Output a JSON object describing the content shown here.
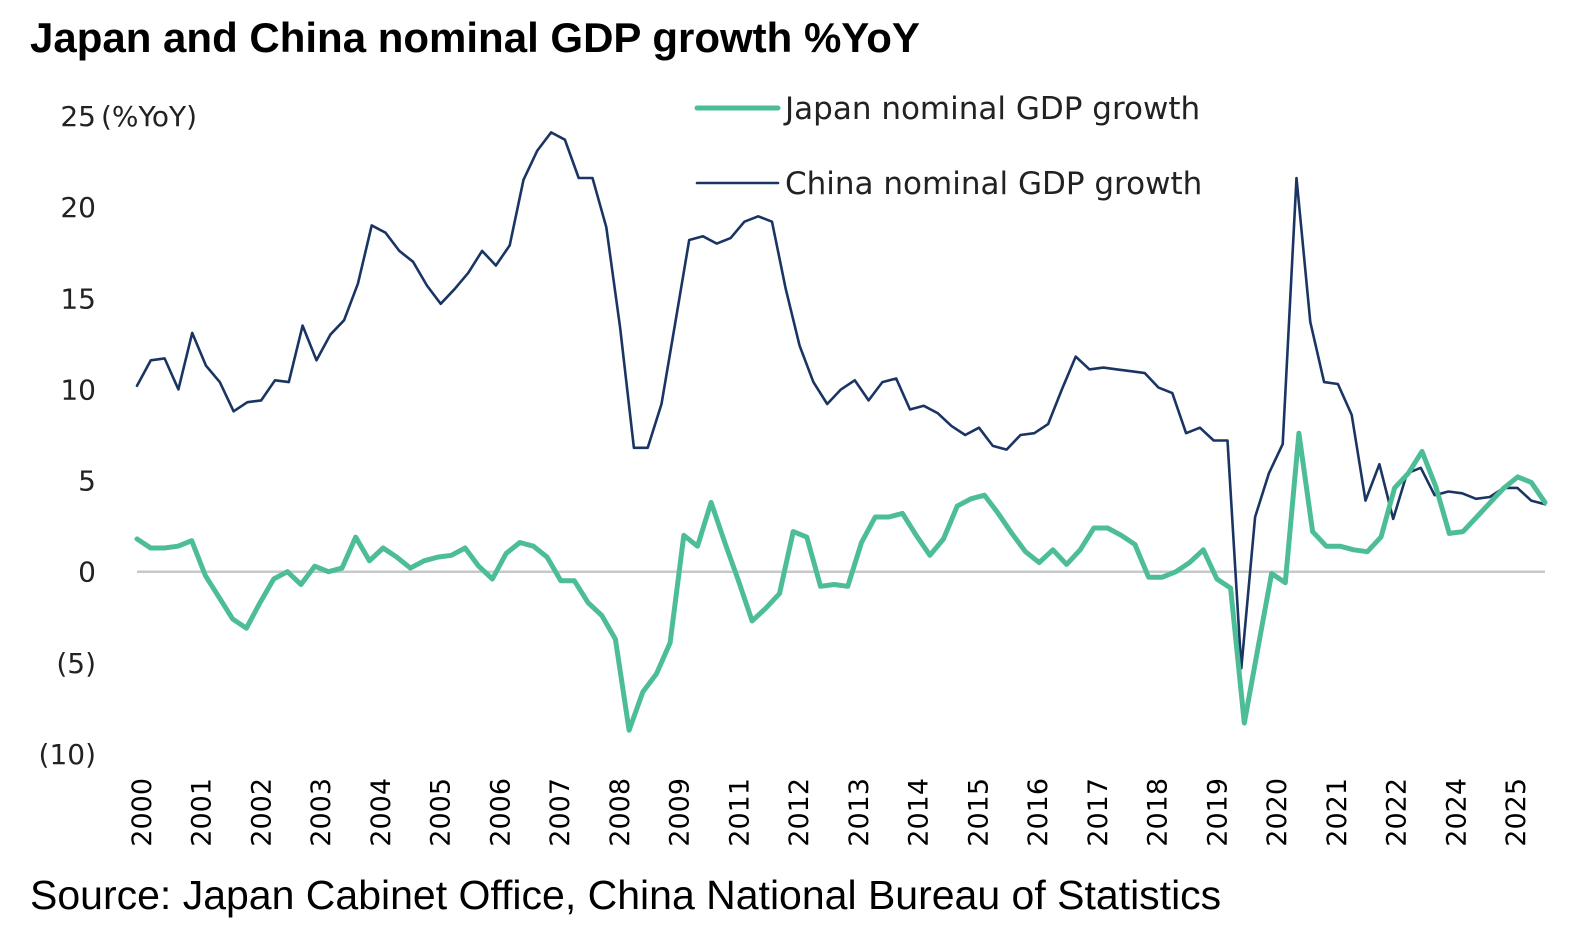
{
  "title": "Japan and China nominal GDP growth %YoY",
  "source": "Source: Japan Cabinet Office, China National Bureau of Statistics",
  "colors": {
    "japan": "#4dbd98",
    "china": "#1a3563",
    "zero_line": "#c8c8c8"
  },
  "chart_data": {
    "type": "line",
    "ylabel": "(%YoY)",
    "ylim": [
      -10,
      25
    ],
    "yticks": [
      {
        "value": 25,
        "label": "25"
      },
      {
        "value": 20,
        "label": "20"
      },
      {
        "value": 15,
        "label": "15"
      },
      {
        "value": 10,
        "label": "10"
      },
      {
        "value": 5,
        "label": "5"
      },
      {
        "value": 0,
        "label": "0"
      },
      {
        "value": -5,
        "label": "(5)"
      },
      {
        "value": -10,
        "label": "(10)"
      }
    ],
    "xtick_labels": [
      "2000",
      "2001",
      "2002",
      "2003",
      "2004",
      "2005",
      "2006",
      "2007",
      "2008",
      "2009",
      "2011",
      "2012",
      "2013",
      "2014",
      "2015",
      "2016",
      "2017",
      "2018",
      "2019",
      "2020",
      "2021",
      "2022",
      "2024",
      "2025"
    ],
    "legend_position": "top-right",
    "grid": false,
    "series": [
      {
        "name": "Japan nominal GDP growth",
        "key": "japan",
        "values": [
          1.8,
          1.3,
          1.3,
          1.4,
          1.7,
          -0.2,
          -1.4,
          -2.6,
          -3.1,
          -1.7,
          -0.4,
          0.0,
          -0.7,
          0.3,
          0.0,
          0.2,
          1.9,
          0.6,
          1.3,
          0.8,
          0.2,
          0.6,
          0.8,
          0.9,
          1.3,
          0.3,
          -0.4,
          1.0,
          1.6,
          1.4,
          0.8,
          -0.5,
          -0.5,
          -1.7,
          -2.4,
          -3.7,
          -8.7,
          -6.6,
          -5.6,
          -3.9,
          2.0,
          1.4,
          3.8,
          1.6,
          -0.5,
          -2.7,
          -2.0,
          -1.2,
          2.2,
          1.9,
          -0.8,
          -0.7,
          -0.8,
          1.6,
          3.0,
          3.0,
          3.2,
          2.0,
          0.9,
          1.8,
          3.6,
          4.0,
          4.2,
          3.2,
          2.1,
          1.1,
          0.5,
          1.2,
          0.4,
          1.2,
          2.4,
          2.4,
          2.0,
          1.5,
          -0.3,
          -0.3,
          0.0,
          0.5,
          1.2,
          -0.4,
          -0.9,
          -8.3,
          -4.2,
          -0.1,
          -0.6,
          7.6,
          2.2,
          1.4,
          1.4,
          1.2,
          1.1,
          1.9,
          4.6,
          5.4,
          6.6,
          4.7,
          2.1,
          2.2,
          3.0,
          3.8,
          4.6,
          5.2,
          4.9,
          3.8
        ]
      },
      {
        "name": "China nominal GDP growth",
        "key": "china",
        "values": [
          10.2,
          11.6,
          11.7,
          10.0,
          13.1,
          11.3,
          10.4,
          8.8,
          9.3,
          9.4,
          10.5,
          10.4,
          13.5,
          11.6,
          13.0,
          13.8,
          15.8,
          19.0,
          18.6,
          17.6,
          17.0,
          15.7,
          14.7,
          15.5,
          16.4,
          17.6,
          16.8,
          17.9,
          21.5,
          23.1,
          24.1,
          23.7,
          21.6,
          21.6,
          18.9,
          13.4,
          6.8,
          6.8,
          9.2,
          13.7,
          18.2,
          18.4,
          18.0,
          18.3,
          19.2,
          19.5,
          19.2,
          15.5,
          12.4,
          10.4,
          9.2,
          10.0,
          10.5,
          9.4,
          10.4,
          10.6,
          8.9,
          9.1,
          8.7,
          8.0,
          7.5,
          7.9,
          6.9,
          6.7,
          7.5,
          7.6,
          8.1,
          10.0,
          11.8,
          11.1,
          11.2,
          11.1,
          11.0,
          10.9,
          10.1,
          9.8,
          7.6,
          7.9,
          7.2,
          7.2,
          -5.3,
          3.0,
          5.4,
          7.0,
          21.6,
          13.7,
          10.4,
          10.3,
          8.6,
          3.9,
          5.9,
          2.9,
          5.4,
          5.7,
          4.2,
          4.4,
          4.3,
          4.0,
          4.1,
          4.6,
          4.6,
          3.9,
          3.7
        ]
      }
    ]
  }
}
